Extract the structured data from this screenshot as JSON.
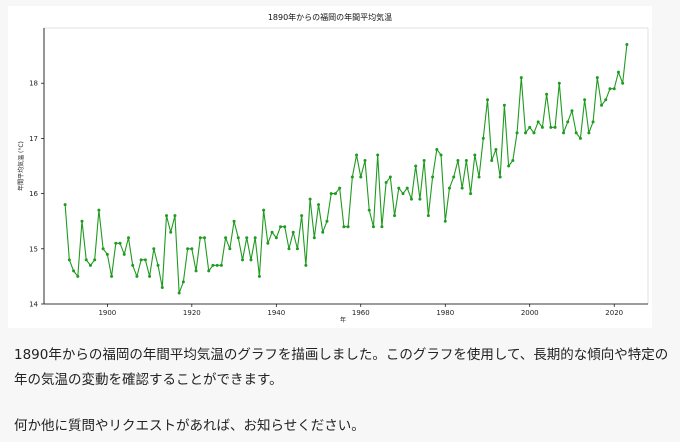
{
  "chart_data": {
    "type": "line",
    "title": "1890年からの福岡の年間平均気温",
    "xlabel": "年",
    "ylabel": "年間平均気温 (°C)",
    "xlim": [
      1885,
      2028
    ],
    "ylim": [
      14,
      19
    ],
    "xticks": [
      1900,
      1920,
      1940,
      1960,
      1980,
      2000,
      2020
    ],
    "yticks": [
      14,
      15,
      16,
      17,
      18
    ],
    "grid": false,
    "line_color": "#1f9b1f",
    "marker": "circle",
    "series": [
      {
        "x": [
          1890,
          1891,
          1892,
          1893,
          1894,
          1895,
          1896,
          1897,
          1898,
          1899,
          1900,
          1901,
          1902,
          1903,
          1904,
          1905,
          1906,
          1907,
          1908,
          1909,
          1910,
          1911,
          1912,
          1913,
          1914,
          1915,
          1916,
          1917,
          1918,
          1919,
          1920,
          1921,
          1922,
          1923,
          1924,
          1925,
          1926,
          1927,
          1928,
          1929,
          1930,
          1931,
          1932,
          1933,
          1934,
          1935,
          1936,
          1937,
          1938,
          1939,
          1940,
          1941,
          1942,
          1943,
          1944,
          1945,
          1946,
          1947,
          1948,
          1949,
          1950,
          1951,
          1952,
          1953,
          1954,
          1955,
          1956,
          1957,
          1958,
          1959,
          1960,
          1961,
          1962,
          1963,
          1964,
          1965,
          1966,
          1967,
          1968,
          1969,
          1970,
          1971,
          1972,
          1973,
          1974,
          1975,
          1976,
          1977,
          1978,
          1979,
          1980,
          1981,
          1982,
          1983,
          1984,
          1985,
          1986,
          1987,
          1988,
          1989,
          1990,
          1991,
          1992,
          1993,
          1994,
          1995,
          1996,
          1997,
          1998,
          1999,
          2000,
          2001,
          2002,
          2003,
          2004,
          2005,
          2006,
          2007,
          2008,
          2009,
          2010,
          2011,
          2012,
          2013,
          2014,
          2015,
          2016,
          2017,
          2018,
          2019,
          2020,
          2021,
          2022,
          2023
        ],
        "values": [
          15.8,
          14.8,
          14.6,
          14.5,
          15.5,
          14.8,
          14.7,
          14.8,
          15.7,
          15.0,
          14.9,
          14.5,
          15.1,
          15.1,
          14.9,
          15.2,
          14.7,
          14.5,
          14.8,
          14.8,
          14.5,
          15.0,
          14.7,
          14.3,
          15.6,
          15.3,
          15.6,
          14.2,
          14.4,
          15.0,
          15.0,
          14.6,
          15.2,
          15.2,
          14.6,
          14.7,
          14.7,
          14.7,
          15.2,
          15.0,
          15.5,
          15.2,
          14.8,
          15.2,
          14.8,
          15.2,
          14.5,
          15.7,
          15.1,
          15.3,
          15.2,
          15.4,
          15.4,
          15.0,
          15.3,
          15.0,
          15.6,
          14.7,
          15.9,
          15.2,
          15.8,
          15.3,
          15.5,
          16.0,
          16.0,
          16.1,
          15.4,
          15.4,
          16.3,
          16.7,
          16.3,
          16.6,
          15.7,
          15.4,
          16.7,
          15.4,
          16.2,
          16.3,
          15.6,
          16.1,
          16.0,
          16.1,
          15.9,
          16.5,
          15.9,
          16.6,
          15.6,
          16.3,
          16.8,
          16.7,
          15.5,
          16.1,
          16.3,
          16.6,
          16.1,
          16.6,
          16.0,
          16.7,
          16.3,
          17.0,
          17.7,
          16.6,
          16.8,
          16.3,
          17.6,
          16.5,
          16.6,
          17.1,
          18.1,
          17.1,
          17.2,
          17.1,
          17.3,
          17.2,
          17.8,
          17.2,
          17.2,
          18.0,
          17.1,
          17.3,
          17.5,
          17.1,
          17.0,
          17.7,
          17.1,
          17.3,
          18.1,
          17.6,
          17.7,
          17.9,
          17.9,
          18.2,
          18.0,
          18.7
        ]
      }
    ]
  },
  "message": {
    "paragraph_1": "1890年からの福岡の年間平均気温のグラフを描画しました。このグラフを使用して、長期的な傾向や特定の年の気温の変動を確認することができます。",
    "paragraph_2": "何か他に質問やリクエストがあれば、お知らせください。"
  }
}
